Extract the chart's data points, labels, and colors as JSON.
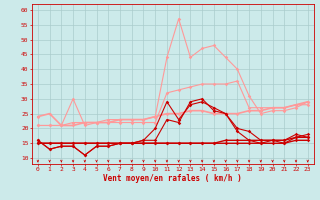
{
  "x": [
    0,
    1,
    2,
    3,
    4,
    5,
    6,
    7,
    8,
    9,
    10,
    11,
    12,
    13,
    14,
    15,
    16,
    17,
    18,
    19,
    20,
    21,
    22,
    23
  ],
  "line_dark1": [
    16,
    13,
    14,
    14,
    11,
    14,
    14,
    15,
    15,
    16,
    16,
    23,
    22,
    29,
    30,
    26,
    25,
    19,
    16,
    15,
    16,
    15,
    17,
    18
  ],
  "line_dark2": [
    16,
    13,
    14,
    14,
    11,
    14,
    14,
    15,
    15,
    16,
    20,
    29,
    23,
    28,
    29,
    27,
    25,
    20,
    19,
    16,
    16,
    16,
    18,
    17
  ],
  "line_dark3": [
    15,
    15,
    15,
    15,
    15,
    15,
    15,
    15,
    15,
    15,
    15,
    15,
    15,
    15,
    15,
    15,
    15,
    15,
    15,
    15,
    15,
    15,
    16,
    16
  ],
  "line_dark4": [
    15,
    15,
    15,
    15,
    15,
    15,
    15,
    15,
    15,
    15,
    15,
    15,
    15,
    15,
    15,
    15,
    16,
    16,
    16,
    16,
    16,
    16,
    17,
    17
  ],
  "line_light1": [
    24,
    25,
    21,
    21,
    22,
    22,
    22,
    23,
    23,
    23,
    24,
    25,
    25,
    26,
    26,
    25,
    25,
    25,
    26,
    26,
    27,
    27,
    28,
    29
  ],
  "line_light2": [
    21,
    21,
    21,
    30,
    21,
    22,
    23,
    23,
    23,
    23,
    24,
    44,
    57,
    44,
    47,
    48,
    44,
    40,
    31,
    25,
    26,
    26,
    27,
    29
  ],
  "line_light3": [
    21,
    21,
    21,
    22,
    22,
    22,
    22,
    22,
    22,
    22,
    22,
    32,
    33,
    34,
    35,
    35,
    35,
    36,
    27,
    27,
    27,
    27,
    28,
    28
  ],
  "bg_color": "#cceaea",
  "grid_color": "#aacccc",
  "line_dark_color": "#cc0000",
  "line_light_color": "#ff9999",
  "line_medium_color": "#ffbbbb",
  "xlabel": "Vent moyen/en rafales ( km/h )",
  "ylim": [
    8,
    62
  ],
  "xlim": [
    -0.5,
    23.5
  ],
  "yticks": [
    10,
    15,
    20,
    25,
    30,
    35,
    40,
    45,
    50,
    55,
    60
  ],
  "xticks": [
    0,
    1,
    2,
    3,
    4,
    5,
    6,
    7,
    8,
    9,
    10,
    11,
    12,
    13,
    14,
    15,
    16,
    17,
    18,
    19,
    20,
    21,
    22,
    23
  ]
}
